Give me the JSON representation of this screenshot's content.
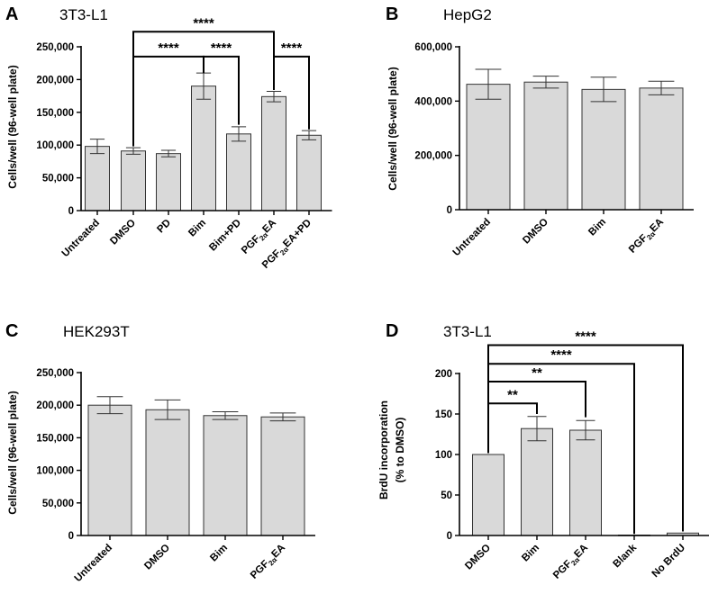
{
  "figure_panels": [
    "A",
    "B",
    "C",
    "D"
  ],
  "chart_data": [
    {
      "panel": "A",
      "type": "bar",
      "title": "3T3-L1",
      "ylabel": "Cells/well (96-well plate)",
      "xlabel": "",
      "ylim": [
        0,
        250000
      ],
      "yticks": [
        0,
        50000,
        100000,
        150000,
        200000,
        250000
      ],
      "ytick_labels": [
        "0",
        "50,000",
        "100,000",
        "150,000",
        "200,000",
        "250,000"
      ],
      "categories": [
        "Untreated",
        "DMSO",
        "PD",
        "Bim",
        "Bim+PD",
        "PGF2αEA",
        "PGF2αEA+PD"
      ],
      "category_labels": [
        {
          "main": "Untreated"
        },
        {
          "main": "DMSO"
        },
        {
          "main": "PD"
        },
        {
          "main": "Bim"
        },
        {
          "main": "Bim+PD"
        },
        {
          "main": "PGF",
          "sub": "2α",
          "rest": "EA"
        },
        {
          "main": "PGF",
          "sub": "2α",
          "rest": "EA+PD"
        }
      ],
      "values": [
        98000,
        91000,
        87000,
        190000,
        117000,
        174000,
        115000
      ],
      "errors": [
        11000,
        5000,
        5000,
        20000,
        11000,
        8000,
        7000
      ],
      "significance": [
        {
          "from": 1,
          "to": 3,
          "label": "****",
          "level": 235000,
          "from_value": 98000,
          "to_value": 210000
        },
        {
          "from": 1,
          "to": 5,
          "label": "****",
          "level": 273000,
          "from_value": 100000,
          "to_value": 210000
        },
        {
          "from": 3,
          "to": 4,
          "label": "****",
          "level": 235000,
          "from_value": 210000,
          "to_value": 131000
        },
        {
          "from": 5,
          "to": 6,
          "label": "****",
          "level": 235000,
          "from_value": 184000,
          "to_value": 124000
        }
      ],
      "bar_color": "#d9d9d9"
    },
    {
      "panel": "B",
      "type": "bar",
      "title": "HepG2",
      "ylabel": "Cells/well (96-well plate)",
      "xlabel": "",
      "ylim": [
        0,
        600000
      ],
      "yticks": [
        0,
        200000,
        400000,
        600000
      ],
      "ytick_labels": [
        "0",
        "200,000",
        "400,000",
        "600,000"
      ],
      "categories": [
        "Untreated",
        "DMSO",
        "Bim",
        "PGF2αEA"
      ],
      "category_labels": [
        {
          "main": "Untreated"
        },
        {
          "main": "DMSO"
        },
        {
          "main": "Bim"
        },
        {
          "main": "PGF",
          "sub": "2α",
          "rest": "EA"
        }
      ],
      "values": [
        462000,
        470000,
        443000,
        448000
      ],
      "errors": [
        55000,
        22000,
        45000,
        25000
      ],
      "significance": [],
      "bar_color": "#d9d9d9"
    },
    {
      "panel": "C",
      "type": "bar",
      "title": "HEK293T",
      "ylabel": "Cells/well (96-well plate)",
      "xlabel": "",
      "ylim": [
        0,
        250000
      ],
      "yticks": [
        0,
        50000,
        100000,
        150000,
        200000,
        250000
      ],
      "ytick_labels": [
        "0",
        "50,000",
        "100,000",
        "150,000",
        "200,000",
        "250,000"
      ],
      "categories": [
        "Untreated",
        "DMSO",
        "Bim",
        "PGF2αEA"
      ],
      "category_labels": [
        {
          "main": "Untreated"
        },
        {
          "main": "DMSO"
        },
        {
          "main": "Bim"
        },
        {
          "main": "PGF",
          "sub": "2α",
          "rest": "EA"
        }
      ],
      "values": [
        200000,
        193000,
        184000,
        182000
      ],
      "errors": [
        13000,
        15000,
        6000,
        6000
      ],
      "significance": [],
      "bar_color": "#d9d9d9"
    },
    {
      "panel": "D",
      "type": "bar",
      "title": "3T3-L1",
      "ylabel": "BrdU incorporation",
      "ylabel2": "(% to DMSO)",
      "xlabel": "",
      "ylim": [
        0,
        200
      ],
      "yticks": [
        0,
        50,
        100,
        150,
        200
      ],
      "ytick_labels": [
        "0",
        "50",
        "100",
        "150",
        "200"
      ],
      "categories": [
        "DMSO",
        "Bim",
        "PGF2αEA",
        "Blank",
        "No BrdU"
      ],
      "category_labels": [
        {
          "main": "DMSO"
        },
        {
          "main": "Bim"
        },
        {
          "main": "PGF",
          "sub": "2α",
          "rest": "EA"
        },
        {
          "main": "Blank"
        },
        {
          "main": "No BrdU"
        }
      ],
      "values": [
        100,
        132,
        130,
        0.5,
        3
      ],
      "errors": [
        0,
        15,
        12,
        0,
        0
      ],
      "significance": [
        {
          "from": 0,
          "to": 1,
          "label": "**",
          "level": 163,
          "from_value": 102,
          "to_value": 150
        },
        {
          "from": 0,
          "to": 2,
          "label": "**",
          "level": 190,
          "from_value": 102,
          "to_value": 146
        },
        {
          "from": 0,
          "to": 3,
          "label": "****",
          "level": 212,
          "from_value": 102,
          "to_value": 2
        },
        {
          "from": 0,
          "to": 4,
          "label": "****",
          "level": 235,
          "from_value": 102,
          "to_value": 5
        }
      ],
      "bar_color": "#d9d9d9"
    }
  ]
}
